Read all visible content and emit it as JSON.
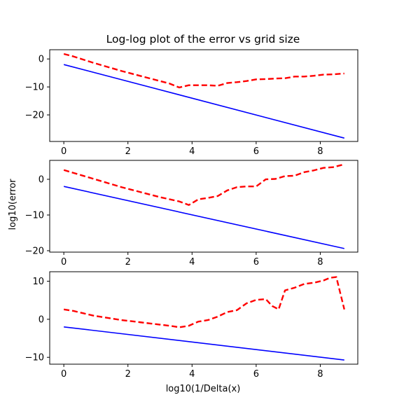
{
  "figure": {
    "title": "Log-log plot of the error vs grid size",
    "xlabel": "log10(1/Delta(x)",
    "ylabel": "log10(error"
  },
  "colors": {
    "reference": "#0000ff",
    "error": "#ff0000"
  },
  "chart_data": [
    {
      "type": "line",
      "title": "Log-log plot of the error vs grid size",
      "xlabel": "",
      "ylabel": "",
      "xlim": [
        -0.44,
        9.17
      ],
      "ylim": [
        -29.5,
        3.3
      ],
      "xticks": [
        0,
        2,
        4,
        6,
        8
      ],
      "yticks": [
        0,
        -10,
        -20
      ],
      "grid": false,
      "series": [
        {
          "style": "solid-blue",
          "x": [
            0,
            8.75
          ],
          "y": [
            -2.0,
            -28.3
          ]
        },
        {
          "style": "dashed-red",
          "x": [
            0,
            0.3,
            0.6,
            0.9,
            1.2,
            1.5,
            1.8,
            2.1,
            2.4,
            2.7,
            3.0,
            3.3,
            3.6,
            3.9,
            4.2,
            4.5,
            4.8,
            5.1,
            5.4,
            5.7,
            6.0,
            6.3,
            6.6,
            6.9,
            7.2,
            7.5,
            7.8,
            8.1,
            8.4,
            8.75
          ],
          "y": [
            1.8,
            0.9,
            -0.2,
            -1.3,
            -2.3,
            -3.3,
            -4.3,
            -5.2,
            -6.1,
            -7.0,
            -7.9,
            -8.8,
            -10.2,
            -9.4,
            -9.4,
            -9.4,
            -9.6,
            -8.6,
            -8.3,
            -7.9,
            -7.3,
            -7.2,
            -7.0,
            -6.9,
            -6.3,
            -6.3,
            -6.0,
            -5.6,
            -5.5,
            -5.2
          ]
        }
      ]
    },
    {
      "type": "line",
      "xlabel": "",
      "ylabel": "log10(error",
      "xlim": [
        -0.44,
        9.17
      ],
      "ylim": [
        -20.4,
        5.3
      ],
      "xticks": [
        0,
        2,
        4,
        6,
        8
      ],
      "yticks": [
        0,
        -10,
        -20
      ],
      "grid": false,
      "series": [
        {
          "style": "solid-blue",
          "x": [
            0,
            8.75
          ],
          "y": [
            -2.0,
            -19.4
          ]
        },
        {
          "style": "dashed-red",
          "x": [
            0,
            0.3,
            0.6,
            0.9,
            1.2,
            1.5,
            1.8,
            2.1,
            2.4,
            2.7,
            3.0,
            3.3,
            3.6,
            3.9,
            4.2,
            4.5,
            4.8,
            5.1,
            5.4,
            5.7,
            6.0,
            6.3,
            6.6,
            6.9,
            7.2,
            7.5,
            7.8,
            8.1,
            8.4,
            8.75
          ],
          "y": [
            2.6,
            1.8,
            1.0,
            0.2,
            -0.6,
            -1.4,
            -2.2,
            -2.9,
            -3.6,
            -4.3,
            -5.0,
            -5.6,
            -6.2,
            -7.2,
            -5.6,
            -5.2,
            -4.7,
            -3.1,
            -2.2,
            -2.0,
            -2.0,
            0.0,
            0.1,
            0.9,
            1.0,
            2.0,
            2.5,
            3.2,
            3.4,
            4.2
          ]
        }
      ]
    },
    {
      "type": "line",
      "xlabel": "log10(1/Delta(x)",
      "ylabel": "",
      "xlim": [
        -0.44,
        9.17
      ],
      "ylim": [
        -11.8,
        12.5
      ],
      "xticks": [
        0,
        2,
        4,
        6,
        8
      ],
      "yticks": [
        10,
        0,
        -10
      ],
      "grid": false,
      "series": [
        {
          "style": "solid-blue",
          "x": [
            0,
            8.75
          ],
          "y": [
            -2.0,
            -10.7
          ]
        },
        {
          "style": "dashed-red",
          "x": [
            0,
            0.3,
            0.6,
            0.9,
            1.2,
            1.5,
            1.8,
            2.1,
            2.4,
            2.7,
            3.0,
            3.3,
            3.6,
            3.9,
            4.2,
            4.5,
            4.8,
            5.1,
            5.4,
            5.7,
            6.0,
            6.3,
            6.5,
            6.7,
            6.9,
            7.2,
            7.5,
            7.8,
            8.1,
            8.3,
            8.5,
            8.75
          ],
          "y": [
            2.6,
            2.2,
            1.6,
            1.0,
            0.6,
            0.2,
            -0.2,
            -0.5,
            -0.8,
            -1.1,
            -1.4,
            -1.7,
            -2.1,
            -1.7,
            -0.6,
            -0.2,
            0.7,
            1.9,
            2.4,
            4.2,
            5.1,
            5.3,
            3.5,
            2.6,
            7.6,
            8.3,
            9.3,
            9.6,
            10.2,
            10.9,
            11.1,
            2.6
          ]
        }
      ]
    }
  ]
}
